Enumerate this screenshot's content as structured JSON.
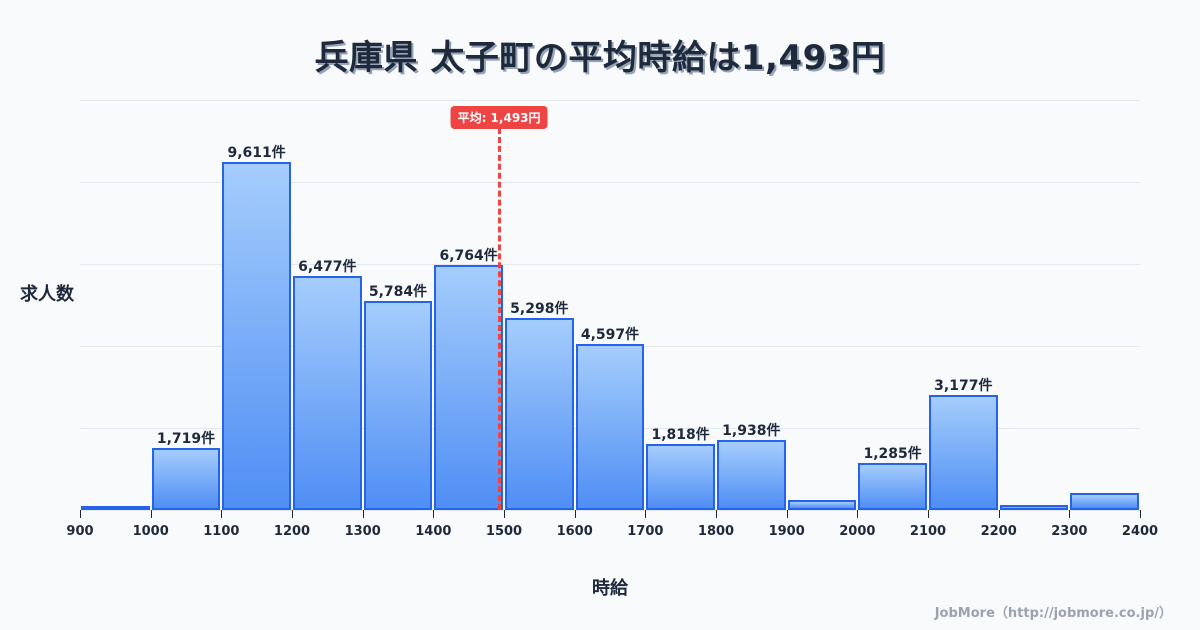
{
  "title": "兵庫県 太子町の平均時給は1,493円",
  "credit": "JobMore（http://jobmore.co.jp/）",
  "colors": {
    "bar_top": "#a5cdfc",
    "bar_bottom": "#4f8ef4",
    "bar_border": "#2563eb",
    "mean": "#ef4444",
    "text": "#1e293b"
  },
  "chart_data": {
    "type": "bar",
    "title": "兵庫県 太子町の平均時給は1,493円",
    "xlabel": "時給",
    "ylabel": "求人数",
    "bin_edges": [
      900,
      1000,
      1100,
      1200,
      1300,
      1400,
      1500,
      1600,
      1700,
      1800,
      1900,
      2000,
      2100,
      2200,
      2300,
      2400
    ],
    "categories": [
      "900-1000",
      "1000-1100",
      "1100-1200",
      "1200-1300",
      "1300-1400",
      "1400-1500",
      "1500-1600",
      "1600-1700",
      "1700-1800",
      "1800-1900",
      "1900-2000",
      "2000-2100",
      "2100-2200",
      "2200-2300",
      "2300-2400"
    ],
    "values": [
      30,
      1719,
      9611,
      6477,
      5784,
      6764,
      5298,
      4597,
      1818,
      1938,
      280,
      1285,
      3177,
      140,
      460
    ],
    "labels": [
      "",
      "1,719件",
      "9,611件",
      "6,477件",
      "5,784件",
      "6,764件",
      "5,298件",
      "4,597件",
      "1,818件",
      "1,938件",
      "",
      "1,285件",
      "3,177件",
      "",
      ""
    ],
    "x_ticks": [
      "900",
      "1000",
      "1100",
      "1200",
      "1300",
      "1400",
      "1500",
      "1600",
      "1700",
      "1800",
      "1900",
      "2000",
      "2100",
      "2200",
      "2300",
      "2400"
    ],
    "xlim": [
      900,
      2400
    ],
    "ylim": [
      0,
      11325
    ],
    "grid": true,
    "mean": {
      "value": 1493,
      "label": "平均: 1,493円"
    },
    "legend": null
  }
}
